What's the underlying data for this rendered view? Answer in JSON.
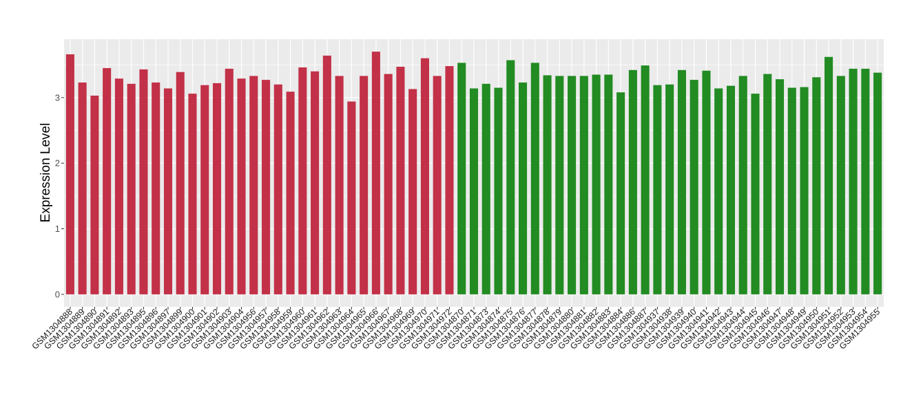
{
  "chart_data": {
    "type": "bar",
    "title": "",
    "xlabel": "",
    "ylabel": "Expression Level",
    "ylim": [
      -0.19,
      3.89
    ],
    "yticks": [
      0,
      1,
      2,
      3
    ],
    "grid": true,
    "legend": "none",
    "colors": {
      "group1": "#C23148",
      "group2": "#228B22",
      "panel": "#EBEBEB",
      "grid": "#FFFFFF"
    },
    "categories": [
      "GSM1304888",
      "GSM1304889",
      "GSM1304890",
      "GSM1304891",
      "GSM1304892",
      "GSM1304893",
      "GSM1304895",
      "GSM1304896",
      "GSM1304897",
      "GSM1304899",
      "GSM1304900",
      "GSM1304901",
      "GSM1304902",
      "GSM1304903",
      "GSM1304904",
      "GSM1304956",
      "GSM1304957",
      "GSM1304958",
      "GSM1304959",
      "GSM1304960",
      "GSM1304961",
      "GSM1304962",
      "GSM1304963",
      "GSM1304964",
      "GSM1304965",
      "GSM1304966",
      "GSM1304967",
      "GSM1304968",
      "GSM1304969",
      "GSM1304970",
      "GSM1304971",
      "GSM1304972",
      "GSM1304870",
      "GSM1304871",
      "GSM1304873",
      "GSM1304874",
      "GSM1304875",
      "GSM1304876",
      "GSM1304877",
      "GSM1304878",
      "GSM1304879",
      "GSM1304880",
      "GSM1304881",
      "GSM1304882",
      "GSM1304883",
      "GSM1304884",
      "GSM1304886",
      "GSM1304887",
      "GSM1304937",
      "GSM1304938",
      "GSM1304939",
      "GSM1304940",
      "GSM1304941",
      "GSM1304942",
      "GSM1304943",
      "GSM1304944",
      "GSM1304945",
      "GSM1304946",
      "GSM1304947",
      "GSM1304948",
      "GSM1304949",
      "GSM1304950",
      "GSM1304951",
      "GSM1304952",
      "GSM1304953",
      "GSM1304954",
      "GSM1304955"
    ],
    "values": [
      3.66,
      3.23,
      3.03,
      3.45,
      3.29,
      3.21,
      3.43,
      3.23,
      3.14,
      3.39,
      3.06,
      3.19,
      3.22,
      3.44,
      3.29,
      3.33,
      3.27,
      3.2,
      3.09,
      3.46,
      3.4,
      3.64,
      3.33,
      2.94,
      3.33,
      3.7,
      3.36,
      3.47,
      3.13,
      3.6,
      3.33,
      3.48,
      3.53,
      3.14,
      3.21,
      3.15,
      3.57,
      3.23,
      3.53,
      3.34,
      3.33,
      3.33,
      3.33,
      3.35,
      3.35,
      3.08,
      3.42,
      3.49,
      3.19,
      3.2,
      3.42,
      3.27,
      3.41,
      3.14,
      3.18,
      3.33,
      3.06,
      3.36,
      3.28,
      3.15,
      3.16,
      3.31,
      3.62,
      3.33,
      3.44,
      3.44,
      3.38
    ],
    "groups": [
      "group1",
      "group1",
      "group1",
      "group1",
      "group1",
      "group1",
      "group1",
      "group1",
      "group1",
      "group1",
      "group1",
      "group1",
      "group1",
      "group1",
      "group1",
      "group1",
      "group1",
      "group1",
      "group1",
      "group1",
      "group1",
      "group1",
      "group1",
      "group1",
      "group1",
      "group1",
      "group1",
      "group1",
      "group1",
      "group1",
      "group1",
      "group1",
      "group2",
      "group2",
      "group2",
      "group2",
      "group2",
      "group2",
      "group2",
      "group2",
      "group2",
      "group2",
      "group2",
      "group2",
      "group2",
      "group2",
      "group2",
      "group2",
      "group2",
      "group2",
      "group2",
      "group2",
      "group2",
      "group2",
      "group2",
      "group2",
      "group2",
      "group2",
      "group2",
      "group2",
      "group2",
      "group2",
      "group2",
      "group2",
      "group2",
      "group2",
      "group2"
    ]
  }
}
